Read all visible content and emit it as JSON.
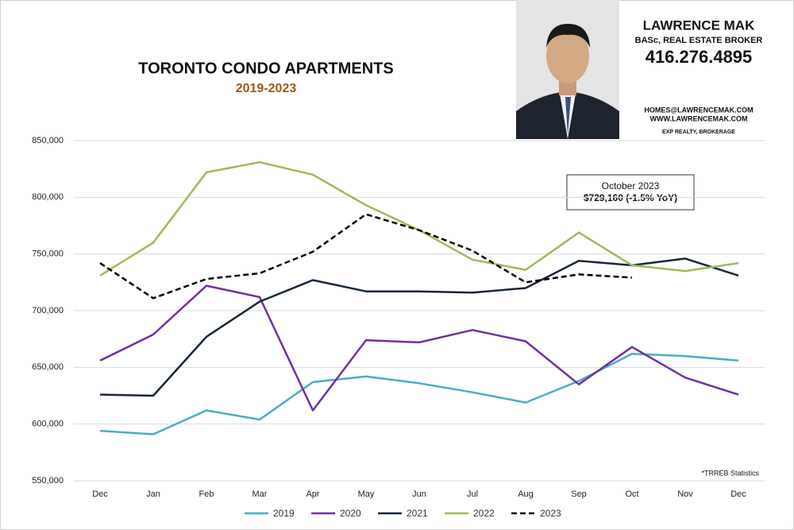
{
  "branding": {
    "name": "LAWRENCE MAK",
    "credentials": "BASc, REAL ESTATE BROKER",
    "phone": "416.276.4895",
    "email": "HOMES@LAWRENCEMAK.COM",
    "website": "WWW.LAWRENCEMAK.COM",
    "brokerage": "EXP REALTY, BROKERAGE"
  },
  "chart_data": {
    "type": "line",
    "title": "TORONTO CONDO APARTMENTS",
    "subtitle": "2019-2023",
    "annotation": {
      "lines": [
        "October 2023",
        "$729,160 (-1.5% YoY)"
      ]
    },
    "note": "*TRREB Statistics",
    "categories": [
      "Dec",
      "Jan",
      "Feb",
      "Mar",
      "Apr",
      "May",
      "Jun",
      "Jul",
      "Aug",
      "Sep",
      "Oct",
      "Nov",
      "Dec"
    ],
    "series": [
      {
        "name": "2019",
        "color": "#4bacc6",
        "style": "solid",
        "values": [
          594000,
          591000,
          612000,
          604000,
          637000,
          642000,
          636000,
          628000,
          619000,
          638000,
          662000,
          660000,
          656000
        ]
      },
      {
        "name": "2020",
        "color": "#7030a0",
        "style": "solid",
        "values": [
          656000,
          679000,
          722000,
          712000,
          612000,
          674000,
          672000,
          683000,
          673000,
          635000,
          668000,
          641000,
          626000
        ]
      },
      {
        "name": "2021",
        "color": "#17263a",
        "style": "solid",
        "values": [
          626000,
          625000,
          677000,
          708000,
          727000,
          717000,
          717000,
          716000,
          720000,
          744000,
          740000,
          746000,
          731000
        ]
      },
      {
        "name": "2022",
        "color": "#9bbb59",
        "style": "solid",
        "values": [
          731000,
          760000,
          822000,
          831000,
          820000,
          793000,
          771000,
          745000,
          736000,
          769000,
          740000,
          735000,
          742000
        ]
      },
      {
        "name": "2023",
        "color": "#000000",
        "style": "dashed",
        "values": [
          742000,
          711000,
          728000,
          733000,
          752000,
          785000,
          771000,
          753000,
          725000,
          732000,
          729160,
          null,
          null
        ]
      }
    ],
    "ylim": [
      550000,
      850000
    ],
    "yticks": [
      {
        "value": 550000,
        "label": "550,000"
      },
      {
        "value": 600000,
        "label": "600,000"
      },
      {
        "value": 650000,
        "label": "650,000"
      },
      {
        "value": 700000,
        "label": "700,000"
      },
      {
        "value": 750000,
        "label": "750,000"
      },
      {
        "value": 800000,
        "label": "800,000"
      },
      {
        "value": 850000,
        "label": "850,000"
      }
    ],
    "grid": true,
    "legend": "bottom"
  }
}
